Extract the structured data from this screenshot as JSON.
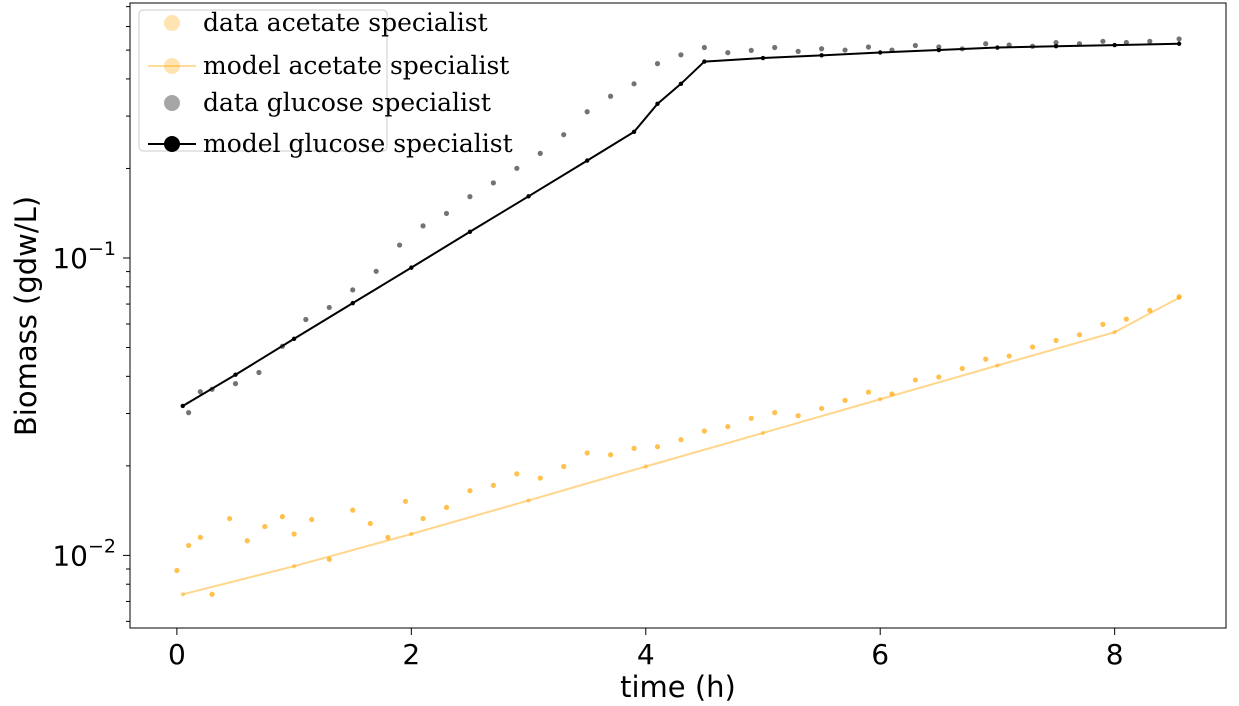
{
  "chart_data": {
    "type": "scatter",
    "xlabel": "time (h)",
    "ylabel": "Biomass (gdw/L)",
    "yscale": "log",
    "xlim": [
      -0.4,
      8.95
    ],
    "ylim": [
      0.0057,
      0.72
    ],
    "x_ticks": [
      {
        "value": 0,
        "label": "0"
      },
      {
        "value": 2,
        "label": "2"
      },
      {
        "value": 4,
        "label": "4"
      },
      {
        "value": 6,
        "label": "6"
      },
      {
        "value": 8,
        "label": "8"
      }
    ],
    "y_ticks": [
      {
        "value": 0.01,
        "base": "10",
        "exp": "−2"
      },
      {
        "value": 0.1,
        "base": "10",
        "exp": "−1"
      }
    ],
    "grid": false,
    "legend_position": "top-left",
    "colors": {
      "acetate": "#ffa500",
      "glucose": "#000000"
    },
    "series": [
      {
        "name": "data acetate specialist",
        "kind": "data",
        "color": "#ffa500",
        "x": [
          0,
          0.1,
          0.2,
          0.3,
          0.45,
          0.6,
          0.75,
          0.9,
          1.0,
          1.15,
          1.3,
          1.5,
          1.65,
          1.8,
          1.95,
          2.1,
          2.3,
          2.5,
          2.7,
          2.9,
          3.1,
          3.3,
          3.5,
          3.7,
          3.9,
          4.1,
          4.3,
          4.5,
          4.7,
          4.9,
          5.1,
          5.3,
          5.5,
          5.7,
          5.9,
          6.1,
          6.3,
          6.5,
          6.7,
          6.9,
          7.1,
          7.3,
          7.5,
          7.7,
          7.9,
          8.1,
          8.3,
          8.55
        ],
        "y": [
          0.0089,
          0.0108,
          0.0115,
          0.0074,
          0.0133,
          0.0112,
          0.0125,
          0.0135,
          0.0118,
          0.0132,
          0.0097,
          0.0142,
          0.0128,
          0.0115,
          0.0152,
          0.0133,
          0.0145,
          0.0165,
          0.0172,
          0.0188,
          0.0182,
          0.0199,
          0.0221,
          0.0218,
          0.0229,
          0.0232,
          0.0245,
          0.0262,
          0.0271,
          0.0289,
          0.0302,
          0.0295,
          0.0312,
          0.0332,
          0.0354,
          0.0349,
          0.0389,
          0.0398,
          0.0425,
          0.0457,
          0.0468,
          0.0502,
          0.0528,
          0.0552,
          0.0598,
          0.0623,
          0.0667,
          0.0741
        ]
      },
      {
        "name": "model acetate specialist",
        "kind": "model",
        "color": "#ffa500",
        "x": [
          0.05,
          1,
          2,
          3,
          4,
          5,
          6,
          7,
          8,
          8.55
        ],
        "y": [
          0.0074,
          0.0092,
          0.0118,
          0.0153,
          0.0199,
          0.0258,
          0.0335,
          0.0435,
          0.0563,
          0.0735
        ]
      },
      {
        "name": "data glucose specialist",
        "kind": "data",
        "color": "#000000",
        "x": [
          0.1,
          0.2,
          0.3,
          0.5,
          0.7,
          0.9,
          1.1,
          1.3,
          1.5,
          1.7,
          1.9,
          2.1,
          2.3,
          2.5,
          2.7,
          2.9,
          3.1,
          3.3,
          3.5,
          3.7,
          3.9,
          4.1,
          4.3,
          4.5,
          4.7,
          4.9,
          5.1,
          5.3,
          5.5,
          5.7,
          5.9,
          6.1,
          6.3,
          6.5,
          6.7,
          6.9,
          7.1,
          7.3,
          7.5,
          7.7,
          7.9,
          8.1,
          8.3,
          8.55
        ],
        "y": [
          0.0302,
          0.0355,
          0.0362,
          0.0378,
          0.0412,
          0.0505,
          0.0621,
          0.0682,
          0.0781,
          0.0902,
          0.1105,
          0.1282,
          0.1412,
          0.1608,
          0.1789,
          0.2002,
          0.2248,
          0.2598,
          0.3102,
          0.3498,
          0.3851,
          0.4502,
          0.4821,
          0.5102,
          0.4902,
          0.4988,
          0.5102,
          0.4951,
          0.5052,
          0.5002,
          0.5121,
          0.5002,
          0.5181,
          0.5122,
          0.5051,
          0.5251,
          0.5201,
          0.5152,
          0.5301,
          0.5252,
          0.5352,
          0.5302,
          0.5352,
          0.5451
        ]
      },
      {
        "name": "model glucose specialist",
        "kind": "model",
        "color": "#000000",
        "x": [
          0.05,
          0.5,
          1,
          1.5,
          2,
          2.5,
          3,
          3.5,
          3.9,
          4.1,
          4.3,
          4.5,
          5,
          5.5,
          6,
          6.5,
          7,
          7.5,
          8,
          8.55
        ],
        "y": [
          0.0318,
          0.0405,
          0.0535,
          0.0705,
          0.0928,
          0.1225,
          0.1612,
          0.2125,
          0.2655,
          0.3298,
          0.3852,
          0.4575,
          0.4702,
          0.4801,
          0.4908,
          0.5002,
          0.5101,
          0.5152,
          0.5198,
          0.5252
        ]
      }
    ]
  }
}
